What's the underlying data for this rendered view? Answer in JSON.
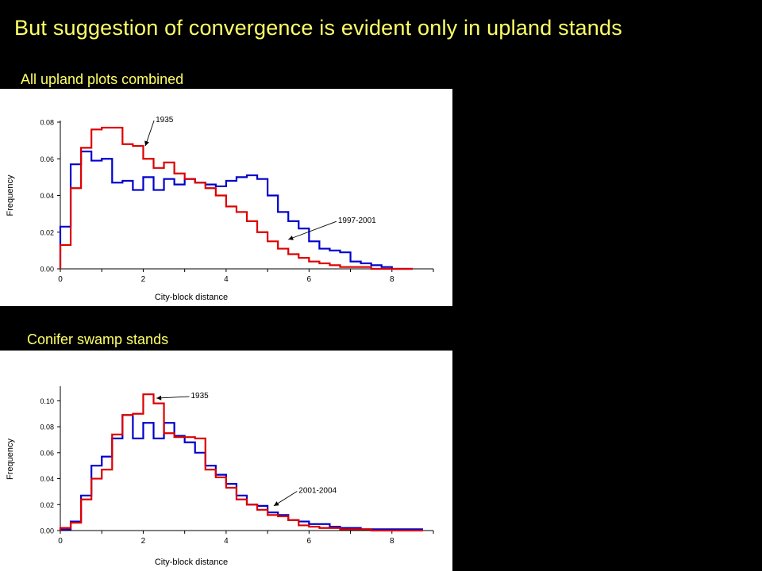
{
  "slide": {
    "title": "But suggestion of convergence is evident only in upland stands",
    "title_color": "#ffff66",
    "background": "#000000"
  },
  "chart_data": [
    {
      "type": "line",
      "step": true,
      "panel_title": "All upland plots combined",
      "xlabel": "City-block distance",
      "ylabel": "Frequency",
      "xlim": [
        0,
        9
      ],
      "ylim": [
        0,
        0.08
      ],
      "xticks": [
        "0",
        "2",
        "4",
        "6",
        "8"
      ],
      "yticks": [
        "0.00",
        "0.02",
        "0.04",
        "0.06",
        "0.08"
      ],
      "bin_width": 0.25,
      "bin_start": 0,
      "series": [
        {
          "color": "#0000cc",
          "values": [
            0.023,
            0.057,
            0.064,
            0.059,
            0.06,
            0.047,
            0.048,
            0.043,
            0.05,
            0.043,
            0.049,
            0.046,
            0.049,
            0.047,
            0.046,
            0.045,
            0.048,
            0.05,
            0.051,
            0.049,
            0.04,
            0.031,
            0.026,
            0.022,
            0.015,
            0.011,
            0.01,
            0.009,
            0.004,
            0.003,
            0.002,
            0.001,
            0.0,
            0.0
          ]
        },
        {
          "color": "#dd0000",
          "values": [
            0.013,
            0.044,
            0.066,
            0.076,
            0.077,
            0.077,
            0.068,
            0.067,
            0.06,
            0.055,
            0.058,
            0.052,
            0.049,
            0.047,
            0.044,
            0.04,
            0.034,
            0.031,
            0.026,
            0.02,
            0.015,
            0.011,
            0.008,
            0.006,
            0.004,
            0.003,
            0.002,
            0.001,
            0.001,
            0.001,
            0.0,
            0.0,
            0.0,
            0.0
          ]
        }
      ],
      "annotations": [
        {
          "text": "1935",
          "at": [
            2.05,
            0.067
          ],
          "label_at": [
            2.3,
            0.08
          ],
          "series": 1
        },
        {
          "text": "1997-2001",
          "at": [
            5.5,
            0.016
          ],
          "label_at": [
            6.7,
            0.025
          ],
          "series": 0
        }
      ]
    },
    {
      "type": "line",
      "step": true,
      "panel_title": "Conifer swamp stands",
      "xlabel": "City-block distance",
      "ylabel": "Frequency",
      "xlim": [
        0,
        9
      ],
      "ylim": [
        0,
        0.11
      ],
      "xticks": [
        "0",
        "2",
        "4",
        "6",
        "8"
      ],
      "yticks": [
        "0.00",
        "0.02",
        "0.04",
        "0.06",
        "0.08",
        "0.10"
      ],
      "bin_width": 0.25,
      "bin_start": 0,
      "series": [
        {
          "color": "#0000cc",
          "values": [
            0.001,
            0.007,
            0.027,
            0.05,
            0.057,
            0.071,
            0.089,
            0.071,
            0.083,
            0.071,
            0.083,
            0.073,
            0.068,
            0.06,
            0.05,
            0.043,
            0.036,
            0.027,
            0.02,
            0.019,
            0.014,
            0.012,
            0.008,
            0.007,
            0.005,
            0.005,
            0.003,
            0.002,
            0.002,
            0.001,
            0.001,
            0.001,
            0.001,
            0.001,
            0.001
          ]
        },
        {
          "color": "#dd0000",
          "values": [
            0.002,
            0.006,
            0.024,
            0.04,
            0.047,
            0.074,
            0.089,
            0.09,
            0.105,
            0.098,
            0.075,
            0.072,
            0.072,
            0.071,
            0.047,
            0.041,
            0.033,
            0.024,
            0.02,
            0.016,
            0.012,
            0.011,
            0.008,
            0.004,
            0.003,
            0.002,
            0.002,
            0.001,
            0.001,
            0.001,
            0.0,
            0.0,
            0.0,
            0.0,
            0.0
          ]
        }
      ],
      "annotations": [
        {
          "text": "1935",
          "at": [
            2.32,
            0.102
          ],
          "label_at": [
            3.15,
            0.102
          ],
          "series": 1
        },
        {
          "text": "2001-2004",
          "at": [
            5.15,
            0.019
          ],
          "label_at": [
            5.75,
            0.029
          ],
          "series": 0
        }
      ]
    }
  ]
}
